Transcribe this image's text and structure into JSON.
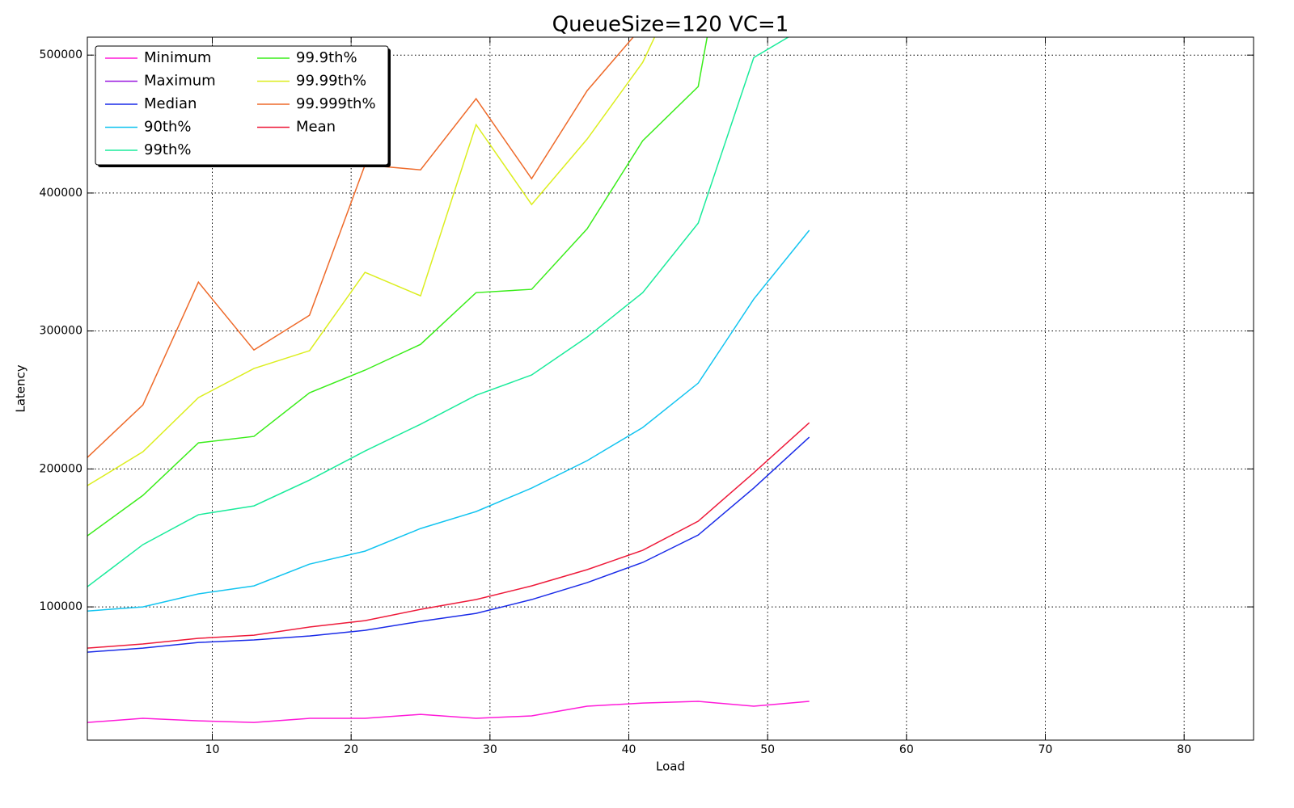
{
  "chart_data": {
    "type": "line",
    "title": "QueueSize=120 VC=1",
    "x_label": "Load",
    "y_label": "Latency",
    "x": [
      1,
      5,
      9,
      13,
      17,
      21,
      25,
      29,
      33,
      37,
      41,
      45,
      49,
      53
    ],
    "series": [
      {
        "name": "Minimum",
        "color": "#ff1ad9",
        "values": [
          16200,
          19200,
          17400,
          16200,
          19200,
          19200,
          22100,
          19200,
          21000,
          28000,
          30300,
          31500,
          28000,
          31500
        ]
      },
      {
        "name": "Maximum",
        "color": "#9b1ae0",
        "values": [
          null,
          null,
          null,
          null,
          null,
          null,
          null,
          null,
          null,
          null,
          null,
          null,
          null,
          null
        ]
      },
      {
        "name": "Median",
        "color": "#1a2be8",
        "values": [
          67200,
          70100,
          74200,
          76000,
          78900,
          83000,
          89500,
          95300,
          105300,
          117600,
          132200,
          152100,
          186100,
          223000
        ]
      },
      {
        "name": "90th%",
        "color": "#12c4f0",
        "values": [
          97000,
          100000,
          109400,
          115200,
          131000,
          140400,
          156800,
          169100,
          186100,
          206000,
          230000,
          262200,
          323100,
          373000
        ]
      },
      {
        "name": "99th%",
        "color": "#1aeb9b",
        "values": [
          114600,
          145100,
          166800,
          173200,
          191900,
          213000,
          232400,
          253400,
          268100,
          295600,
          327800,
          378200,
          498200,
          522000
        ]
      },
      {
        "name": "99.9th%",
        "color": "#3aed1a",
        "values": [
          151500,
          180800,
          218900,
          223600,
          255200,
          271600,
          290300,
          327800,
          330200,
          374100,
          437900,
          477200,
          700000,
          null
        ]
      },
      {
        "name": "99.99th%",
        "color": "#dcee1f",
        "values": [
          187900,
          212400,
          251700,
          272800,
          285700,
          342500,
          325500,
          449600,
          391700,
          439100,
          494700,
          580000,
          null,
          null
        ]
      },
      {
        "name": "99.999th%",
        "color": "#ee6a2a",
        "values": [
          208300,
          246400,
          335400,
          286200,
          311400,
          420400,
          416800,
          468400,
          410400,
          474200,
          521000,
          null,
          null,
          null
        ]
      },
      {
        "name": "Mean",
        "color": "#ee1a3a",
        "values": [
          70100,
          73100,
          77200,
          79500,
          85400,
          90000,
          98200,
          105300,
          115200,
          127000,
          141000,
          162100,
          197200,
          233500
        ]
      }
    ],
    "xlim": [
      1,
      85
    ],
    "xticks": [
      10,
      20,
      30,
      40,
      50,
      60,
      70,
      80
    ],
    "ylim": [
      3400,
      513000
    ],
    "yticks": [
      100000,
      200000,
      300000,
      400000,
      500000
    ],
    "grid": true,
    "legend": "upper left"
  }
}
